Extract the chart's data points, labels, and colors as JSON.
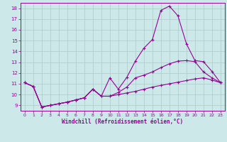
{
  "xlabel": "Windchill (Refroidissement éolien,°C)",
  "xlim": [
    -0.5,
    23.5
  ],
  "ylim": [
    8.5,
    18.5
  ],
  "xticks": [
    0,
    1,
    2,
    3,
    4,
    5,
    6,
    7,
    8,
    9,
    10,
    11,
    12,
    13,
    14,
    15,
    16,
    17,
    18,
    19,
    20,
    21,
    22,
    23
  ],
  "yticks": [
    9,
    10,
    11,
    12,
    13,
    14,
    15,
    16,
    17,
    18
  ],
  "bg_color": "#cce8e8",
  "line_color": "#990099",
  "grid_color": "#aacccc",
  "curve1_x": [
    0,
    1,
    2,
    3,
    4,
    5,
    6,
    7,
    8,
    9,
    10,
    11,
    12,
    13,
    14,
    15,
    16,
    17,
    18,
    19,
    20,
    21,
    22,
    23
  ],
  "curve1_y": [
    11.1,
    10.75,
    8.85,
    9.0,
    9.15,
    9.3,
    9.5,
    9.7,
    10.5,
    9.85,
    11.55,
    10.5,
    11.6,
    13.1,
    14.3,
    15.1,
    17.8,
    18.2,
    17.3,
    14.7,
    13.15,
    13.05,
    12.15,
    11.1
  ],
  "curve2_x": [
    0,
    1,
    2,
    3,
    4,
    5,
    6,
    7,
    8,
    9,
    10,
    11,
    12,
    13,
    14,
    15,
    16,
    17,
    18,
    19,
    20,
    21,
    22,
    23
  ],
  "curve2_y": [
    11.1,
    10.75,
    8.85,
    9.0,
    9.15,
    9.3,
    9.5,
    9.7,
    10.5,
    9.85,
    9.85,
    10.2,
    10.7,
    11.55,
    11.8,
    12.1,
    12.5,
    12.85,
    13.1,
    13.15,
    13.05,
    12.1,
    11.55,
    11.1
  ],
  "curve3_x": [
    0,
    1,
    2,
    3,
    4,
    5,
    6,
    7,
    8,
    9,
    10,
    11,
    12,
    13,
    14,
    15,
    16,
    17,
    18,
    19,
    20,
    21,
    22,
    23
  ],
  "curve3_y": [
    11.1,
    10.75,
    8.85,
    9.0,
    9.15,
    9.3,
    9.5,
    9.7,
    10.5,
    9.85,
    9.85,
    10.0,
    10.15,
    10.3,
    10.5,
    10.7,
    10.85,
    11.0,
    11.15,
    11.3,
    11.45,
    11.55,
    11.35,
    11.1
  ]
}
